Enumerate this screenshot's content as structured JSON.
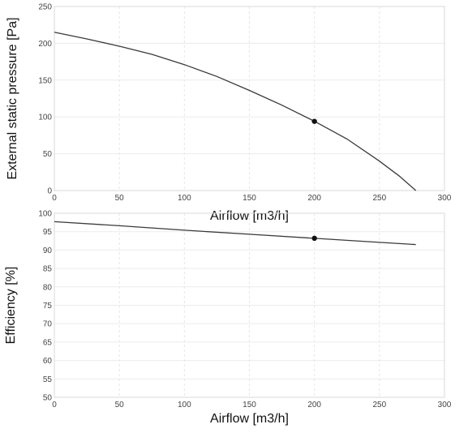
{
  "chart_data": [
    {
      "type": "line",
      "xlabel": "Airflow [m3/h]",
      "ylabel": "External static pressure [Pa]",
      "xlim": [
        0,
        300
      ],
      "ylim": [
        0,
        250
      ],
      "xticks": [
        0,
        50,
        100,
        150,
        200,
        250,
        300
      ],
      "yticks": [
        0,
        50,
        100,
        150,
        200,
        250
      ],
      "grid": true,
      "series": [
        {
          "x": [
            0,
            25,
            50,
            75,
            100,
            125,
            150,
            175,
            200,
            225,
            250,
            265,
            278
          ],
          "y": [
            215,
            206,
            196,
            185,
            171,
            155,
            136,
            116,
            94,
            70,
            40,
            20,
            0
          ]
        }
      ],
      "operating_point": {
        "x": 200,
        "y": 94
      }
    },
    {
      "type": "line",
      "xlabel": "Airflow [m3/h]",
      "ylabel": "Efficiency [%]",
      "xlim": [
        0,
        300
      ],
      "ylim": [
        50,
        100
      ],
      "xticks": [
        0,
        50,
        100,
        150,
        200,
        250,
        300
      ],
      "yticks": [
        50,
        55,
        60,
        65,
        70,
        75,
        80,
        85,
        90,
        95,
        100
      ],
      "grid": true,
      "series": [
        {
          "x": [
            0,
            50,
            100,
            150,
            200,
            250,
            278
          ],
          "y": [
            97.7,
            96.6,
            95.4,
            94.3,
            93.2,
            92.1,
            91.5
          ]
        }
      ],
      "operating_point": {
        "x": 200,
        "y": 93.2
      }
    }
  ]
}
